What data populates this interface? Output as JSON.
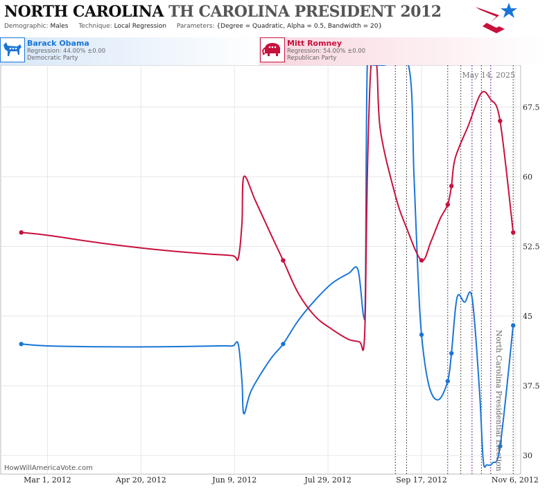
{
  "header": {
    "title_part1": "NORTH CAROLINA",
    "title_part2": "TH CAROLINA PRESIDENT 2012",
    "demographic_label": "Demographic:",
    "demographic_value": "Males",
    "technique_label": "Technique:",
    "technique_value": "Local Regression",
    "parameters_label": "Parameters:",
    "parameters_value": "{Degree = Quadratic, Alpha = 0.5, Bandwidth = 20}"
  },
  "logo_icon": "stars-and-stripes-logo-icon",
  "candidates": [
    {
      "name": "Barack Obama",
      "regression": "Regression: 44.00% ±0.00",
      "party": "Democratic Party",
      "icon": "donkey-icon",
      "color": "#1a75d6"
    },
    {
      "name": "Mitt Romney",
      "regression": "Regression: 54.00% ±0.00",
      "party": "Republican Party",
      "icon": "elephant-icon",
      "color": "#c8103c"
    }
  ],
  "date_stamp": "May 14, 2025",
  "watermark": "HowWillAmericaVote.com",
  "election_label": "North Carolina Presidential Election",
  "chart_data": {
    "type": "line",
    "x_ticks": [
      "Mar 1, 2012",
      "Apr 20, 2012",
      "Jun 9, 2012",
      "Jul 29, 2012",
      "Sep 17, 2012",
      "Nov 6, 2012"
    ],
    "y_ticks": [
      "30",
      "37.5",
      "45",
      "52.5",
      "60",
      "67.5"
    ],
    "ylim": [
      28,
      72
    ],
    "xlim": [
      "2012-02-05",
      "2012-11-09"
    ],
    "grid": true,
    "poll_dates": [
      "2012-09-03",
      "2012-09-09",
      "2012-10-01",
      "2012-10-08",
      "2012-10-14",
      "2012-10-19",
      "2012-10-24",
      "2012-11-05"
    ],
    "series": [
      {
        "name": "Barack Obama",
        "color": "#1a75d6",
        "points": [
          [
            "2012-02-16",
            42
          ],
          [
            "2012-03-01",
            41.8
          ],
          [
            "2012-04-01",
            41.7
          ],
          [
            "2012-05-01",
            41.7
          ],
          [
            "2012-06-01",
            41.8
          ],
          [
            "2012-06-08",
            41.8
          ],
          [
            "2012-06-11",
            42
          ],
          [
            "2012-06-13",
            38
          ],
          [
            "2012-06-14",
            34.5
          ],
          [
            "2012-06-18",
            37
          ],
          [
            "2012-06-28",
            40.3
          ],
          [
            "2012-07-05",
            42
          ],
          [
            "2012-07-13",
            44.5
          ],
          [
            "2012-07-22",
            46.7
          ],
          [
            "2012-07-31",
            48.5
          ],
          [
            "2012-08-09",
            49.6
          ],
          [
            "2012-08-14",
            50
          ],
          [
            "2012-08-17",
            45
          ],
          [
            "2012-08-18",
            48
          ],
          [
            "2012-08-19",
            72
          ],
          [
            "2012-08-22",
            72
          ],
          [
            "2012-08-28",
            72
          ],
          [
            "2012-09-10",
            72
          ],
          [
            "2012-09-13",
            60
          ],
          [
            "2012-09-15",
            50
          ],
          [
            "2012-09-17",
            43
          ],
          [
            "2012-09-21",
            37.5
          ],
          [
            "2012-09-26",
            36
          ],
          [
            "2012-10-01",
            38
          ],
          [
            "2012-10-03",
            41
          ],
          [
            "2012-10-06",
            47
          ],
          [
            "2012-10-10",
            46.5
          ],
          [
            "2012-10-14",
            47
          ],
          [
            "2012-10-18",
            37
          ],
          [
            "2012-10-20",
            29.5
          ],
          [
            "2012-10-22",
            29
          ],
          [
            "2012-10-25",
            29.2
          ],
          [
            "2012-10-29",
            31
          ],
          [
            "2012-11-05",
            44
          ]
        ],
        "markers": [
          [
            "2012-02-16",
            42
          ],
          [
            "2012-07-05",
            42
          ],
          [
            "2012-09-17",
            43
          ],
          [
            "2012-10-01",
            38
          ],
          [
            "2012-10-03",
            41
          ],
          [
            "2012-10-29",
            31
          ],
          [
            "2012-11-05",
            44
          ]
        ]
      },
      {
        "name": "Mitt Romney",
        "color": "#c8103c",
        "points": [
          [
            "2012-02-16",
            54
          ],
          [
            "2012-03-01",
            53.7
          ],
          [
            "2012-04-01",
            52.8
          ],
          [
            "2012-05-01",
            52.1
          ],
          [
            "2012-05-25",
            51.7
          ],
          [
            "2012-06-08",
            51.5
          ],
          [
            "2012-06-11",
            51.2
          ],
          [
            "2012-06-13",
            55
          ],
          [
            "2012-06-14",
            60
          ],
          [
            "2012-06-20",
            57.5
          ],
          [
            "2012-06-28",
            54
          ],
          [
            "2012-07-05",
            51
          ],
          [
            "2012-07-13",
            47.5
          ],
          [
            "2012-07-22",
            45
          ],
          [
            "2012-07-31",
            43.6
          ],
          [
            "2012-08-09",
            42.5
          ],
          [
            "2012-08-15",
            42.2
          ],
          [
            "2012-08-17",
            41.5
          ],
          [
            "2012-08-18",
            46
          ],
          [
            "2012-08-19",
            60
          ],
          [
            "2012-08-21",
            72
          ],
          [
            "2012-08-24",
            72
          ],
          [
            "2012-08-26",
            65
          ],
          [
            "2012-09-03",
            58
          ],
          [
            "2012-09-09",
            54.5
          ],
          [
            "2012-09-17",
            51
          ],
          [
            "2012-09-22",
            53
          ],
          [
            "2012-09-27",
            55.5
          ],
          [
            "2012-10-01",
            57
          ],
          [
            "2012-10-03",
            59
          ],
          [
            "2012-10-05",
            62
          ],
          [
            "2012-10-12",
            65.5
          ],
          [
            "2012-10-19",
            69
          ],
          [
            "2012-10-24",
            68.3
          ],
          [
            "2012-10-29",
            66
          ],
          [
            "2012-11-05",
            54
          ]
        ],
        "markers": [
          [
            "2012-02-16",
            54
          ],
          [
            "2012-07-05",
            51
          ],
          [
            "2012-09-17",
            51
          ],
          [
            "2012-10-01",
            57
          ],
          [
            "2012-10-03",
            59
          ],
          [
            "2012-10-29",
            66
          ],
          [
            "2012-11-05",
            54
          ]
        ]
      }
    ]
  }
}
